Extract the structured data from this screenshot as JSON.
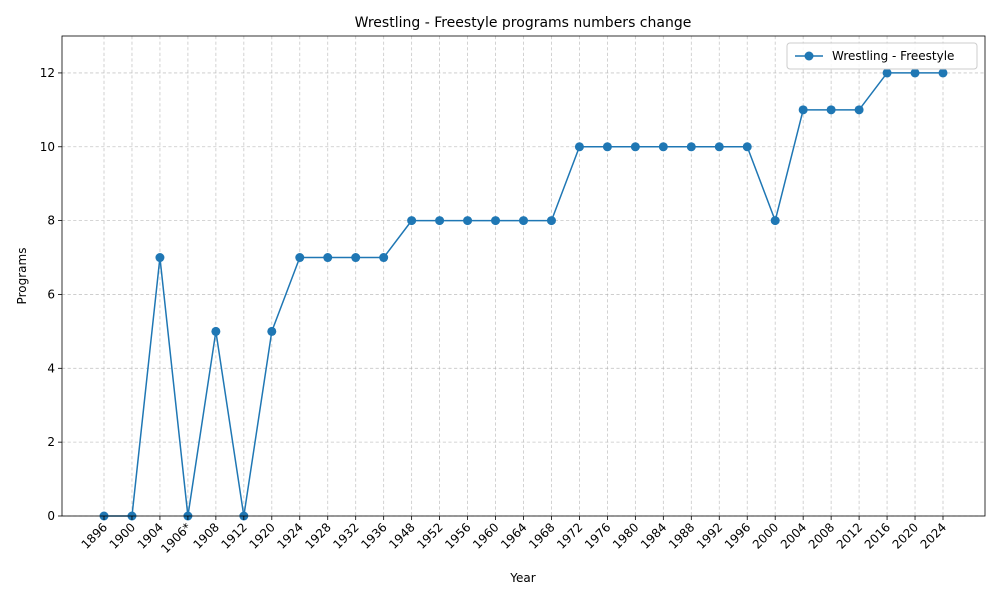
{
  "chart_data": {
    "type": "line",
    "title": "Wrestling - Freestyle programs numbers change",
    "xlabel": "Year",
    "ylabel": "Programs",
    "categories": [
      "1896",
      "1900",
      "1904",
      "1906*",
      "1908",
      "1912",
      "1920",
      "1924",
      "1928",
      "1932",
      "1936",
      "1948",
      "1952",
      "1956",
      "1960",
      "1964",
      "1968",
      "1972",
      "1976",
      "1980",
      "1984",
      "1988",
      "1992",
      "1996",
      "2000",
      "2004",
      "2008",
      "2012",
      "2016",
      "2020",
      "2024"
    ],
    "series": [
      {
        "name": "Wrestling - Freestyle",
        "values": [
          0,
          0,
          7,
          0,
          5,
          0,
          5,
          7,
          7,
          7,
          7,
          8,
          8,
          8,
          8,
          8,
          8,
          10,
          10,
          10,
          10,
          10,
          10,
          10,
          8,
          11,
          11,
          11,
          12,
          12,
          12
        ],
        "color": "#1f77b4"
      }
    ],
    "ylim": [
      0,
      13
    ],
    "yticks": [
      0,
      2,
      4,
      6,
      8,
      10,
      12
    ],
    "grid": true,
    "legend_position": "top-right"
  }
}
